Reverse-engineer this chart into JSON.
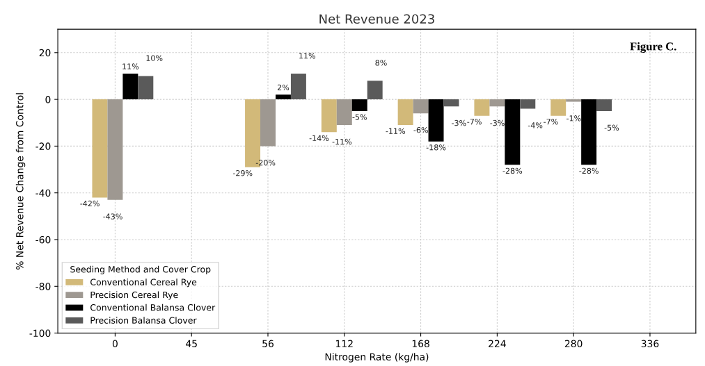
{
  "chart_data": {
    "type": "bar",
    "title": "Net Revenue 2023",
    "xlabel": "Nitrogen Rate (kg/ha)",
    "ylabel": "% Net Revenue Change from Control",
    "legend_title": "Seeding Method and Cover Crop",
    "annotations": [
      "Figure C."
    ],
    "categories": [
      "0",
      "45",
      "56",
      "112",
      "168",
      "224",
      "280",
      "336"
    ],
    "series": [
      {
        "name": "Conventional Cereal Rye",
        "color": "#d2b979",
        "values": [
          -42,
          null,
          -29,
          -14,
          -11,
          -7,
          -7,
          null
        ],
        "value_labels": [
          "-42%",
          null,
          "-29%",
          "-14%",
          "-11%",
          "-7%",
          "-7%",
          null
        ]
      },
      {
        "name": "Precision Cereal Rye",
        "color": "#9e9891",
        "values": [
          -43,
          null,
          -20,
          -11,
          -6,
          -3,
          -1,
          null
        ],
        "value_labels": [
          "-43%",
          null,
          "-20%",
          "-11%",
          "-6%",
          "-3%",
          "-1%",
          null
        ]
      },
      {
        "name": "Conventional Balansa Clover",
        "color": "#000000",
        "values": [
          11,
          null,
          2,
          -5,
          -18,
          -28,
          -28,
          null
        ],
        "value_labels": [
          "11%",
          null,
          "2%",
          "-5%",
          "-18%",
          "-28%",
          "-28%",
          null
        ]
      },
      {
        "name": "Precision Balansa Clover",
        "color": "#5a5a5a",
        "values": [
          10,
          null,
          11,
          8,
          -3,
          -4,
          -5,
          null
        ],
        "value_labels": [
          "10%",
          null,
          "11%",
          "8%",
          "-3%",
          "-4%",
          "-5%",
          null
        ]
      }
    ],
    "ylim": [
      -100,
      30
    ],
    "yticks": [
      -100,
      -80,
      -60,
      -40,
      -20,
      0,
      20
    ],
    "grid": true,
    "legend": "bottom left"
  }
}
